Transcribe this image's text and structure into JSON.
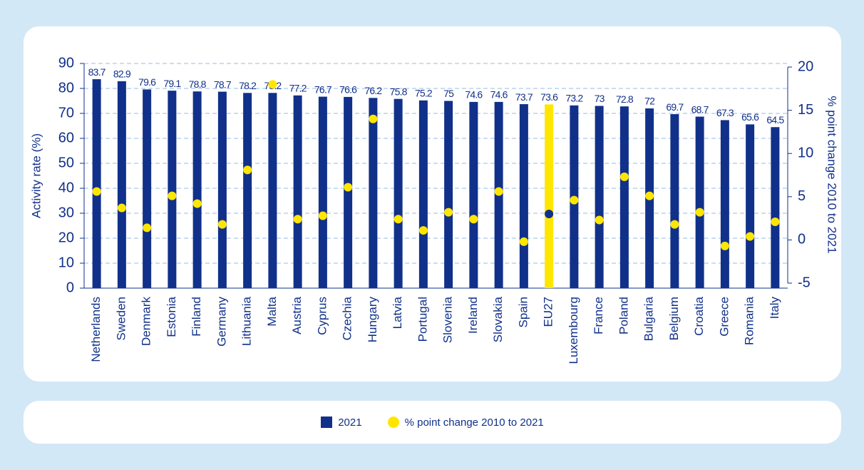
{
  "chart_data": {
    "type": "bar_dot",
    "y_label": "Activity rate (%)",
    "y2_label": "% point change 2010 to 2021",
    "categories": [
      "Netherlands",
      "Sweden",
      "Denmark",
      "Estonia",
      "Finland",
      "Germany",
      "Lithuania",
      "Malta",
      "Austria",
      "Cyprus",
      "Czechia",
      "Hungary",
      "Latvia",
      "Portugal",
      "Slovenia",
      "Ireland",
      "Slovakia",
      "Spain",
      "EU27",
      "Luxembourg",
      "France",
      "Poland",
      "Bulgaria",
      "Belgium",
      "Croatia",
      "Greece",
      "Romania",
      "Italy"
    ],
    "series": [
      {
        "name": "2021",
        "color": "#10308a",
        "colors": [
          "#10308a",
          "#10308a",
          "#10308a",
          "#10308a",
          "#10308a",
          "#10308a",
          "#10308a",
          "#10308a",
          "#10308a",
          "#10308a",
          "#10308a",
          "#10308a",
          "#10308a",
          "#10308a",
          "#10308a",
          "#10308a",
          "#10308a",
          "#10308a",
          "#ffe600",
          "#10308a",
          "#10308a",
          "#10308a",
          "#10308a",
          "#10308a",
          "#10308a",
          "#10308a",
          "#10308a",
          "#10308a"
        ],
        "values": [
          83.7,
          82.9,
          79.6,
          79.1,
          78.8,
          78.7,
          78.2,
          78.2,
          77.2,
          76.7,
          76.6,
          76.2,
          75.8,
          75.2,
          75,
          74.6,
          74.6,
          73.7,
          73.6,
          73.2,
          73,
          72.8,
          72,
          69.7,
          68.7,
          67.3,
          65.6,
          64.5
        ]
      },
      {
        "name": "% point change 2010 to 2021",
        "color": "#ffe600",
        "axis": "y2",
        "colors": [
          "#ffe600",
          "#ffe600",
          "#ffe600",
          "#ffe600",
          "#ffe600",
          "#ffe600",
          "#ffe600",
          "#ffe600",
          "#ffe600",
          "#ffe600",
          "#ffe600",
          "#ffe600",
          "#ffe600",
          "#ffe600",
          "#ffe600",
          "#ffe600",
          "#ffe600",
          "#ffe600",
          "#10308a",
          "#ffe600",
          "#ffe600",
          "#ffe600",
          "#ffe600",
          "#ffe600",
          "#ffe600",
          "#ffe600",
          "#ffe600",
          "#ffe600"
        ],
        "values": [
          5.6,
          3.7,
          1.4,
          5.1,
          4.2,
          1.8,
          8.1,
          18.0,
          2.4,
          2.8,
          6.1,
          14.0,
          2.4,
          1.1,
          3.2,
          2.4,
          5.6,
          -0.2,
          3.0,
          4.6,
          2.3,
          7.3,
          5.1,
          1.8,
          3.2,
          -0.7,
          0.4,
          2.1
        ]
      }
    ],
    "ylim": [
      0,
      90
    ],
    "yticks": [
      0,
      10,
      20,
      30,
      40,
      50,
      60,
      70,
      80,
      90
    ],
    "y2lim": [
      -5,
      20
    ],
    "y2ticks": [
      -5,
      0,
      5,
      10,
      15,
      20
    ],
    "grid": true
  }
}
